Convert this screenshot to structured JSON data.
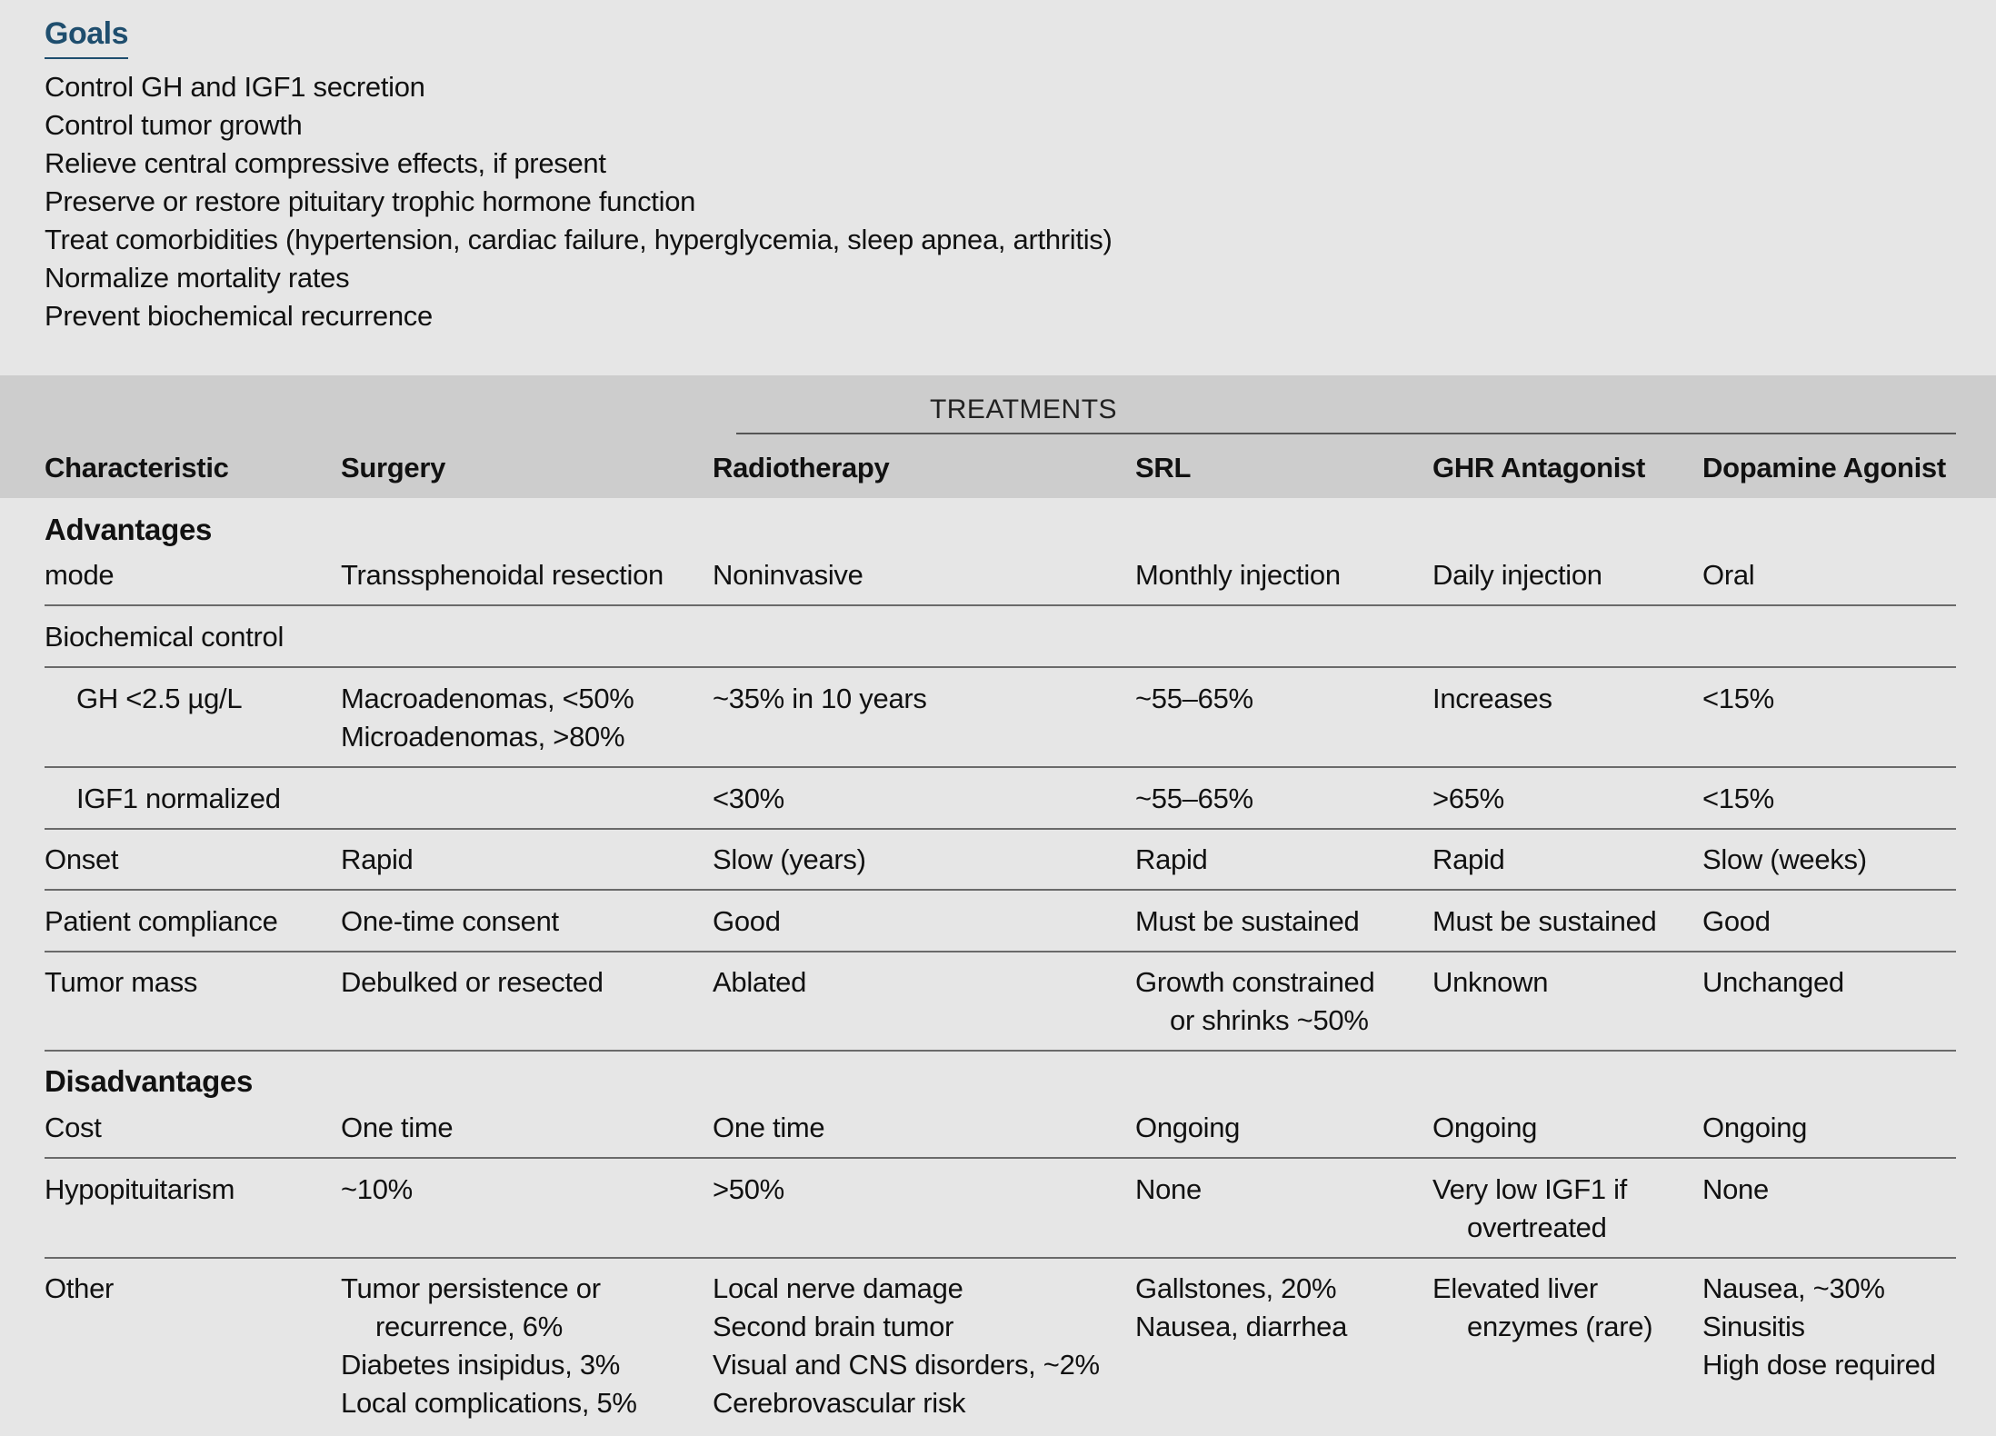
{
  "goals": {
    "title": "Goals",
    "items": [
      "Control GH and IGF1 secretion",
      "Control tumor growth",
      "Relieve central compressive effects, if present",
      "Preserve or restore pituitary trophic hormone function",
      "Treat comorbidities (hypertension, cardiac failure, hyperglycemia, sleep apnea, arthritis)",
      "Normalize mortality rates",
      "Prevent biochemical recurrence"
    ]
  },
  "table": {
    "group_label": "TREATMENTS",
    "headers": [
      "Characteristic",
      "Surgery",
      "Radiotherapy",
      "SRL",
      "GHR Antagonist",
      "Dopamine Agonist"
    ],
    "advantages_label": "Advantages",
    "disadvantages_label": "Disadvantages",
    "rows": [
      {
        "label": "mode",
        "cells": [
          "Transsphenoidal resection",
          "Noninvasive",
          "Monthly injection",
          "Daily injection",
          "Oral"
        ]
      },
      {
        "label": "Biochemical control",
        "cells": [
          "",
          "",
          "",
          "",
          ""
        ]
      },
      {
        "label": "GH <2.5 µg/L",
        "cells": [
          "Macroadenomas, <50%\nMicroadenomas, >80%",
          "~35% in 10 years",
          "~55–65%",
          "Increases",
          "<15%"
        ]
      },
      {
        "label": "IGF1 normalized",
        "cells": [
          "",
          "<30%",
          "~55–65%",
          ">65%",
          "<15%"
        ]
      },
      {
        "label": "Onset",
        "cells": [
          "Rapid",
          "Slow (years)",
          "Rapid",
          "Rapid",
          "Slow (weeks)"
        ]
      },
      {
        "label": "Patient compliance",
        "cells": [
          "One-time consent",
          "Good",
          "Must be sustained",
          "Must be sustained",
          "Good"
        ]
      },
      {
        "label": "Tumor mass",
        "cells": [
          "Debulked or resected",
          "Ablated",
          "Growth constrained\nor shrinks ~50%",
          "Unknown",
          "Unchanged"
        ]
      },
      {
        "label": "Cost",
        "cells": [
          "One time",
          "One time",
          "Ongoing",
          "Ongoing",
          "Ongoing"
        ]
      },
      {
        "label": "Hypopituitarism",
        "cells": [
          "~10%",
          ">50%",
          "None",
          "Very low IGF1 if\novertreated",
          "None"
        ]
      },
      {
        "label": "Other",
        "cells": [
          "Tumor persistence or\nrecurrence, 6%\nDiabetes insipidus, 3%\nLocal complications, 5%",
          "Local nerve damage\nSecond brain tumor\nVisual and CNS disorders, ~2%\nCerebrovascular risk",
          "Gallstones, 20%\nNausea, diarrhea",
          "Elevated liver\nenzymes (rare)",
          "Nausea, ~30%\nSinusitis\nHigh dose required"
        ]
      }
    ]
  }
}
